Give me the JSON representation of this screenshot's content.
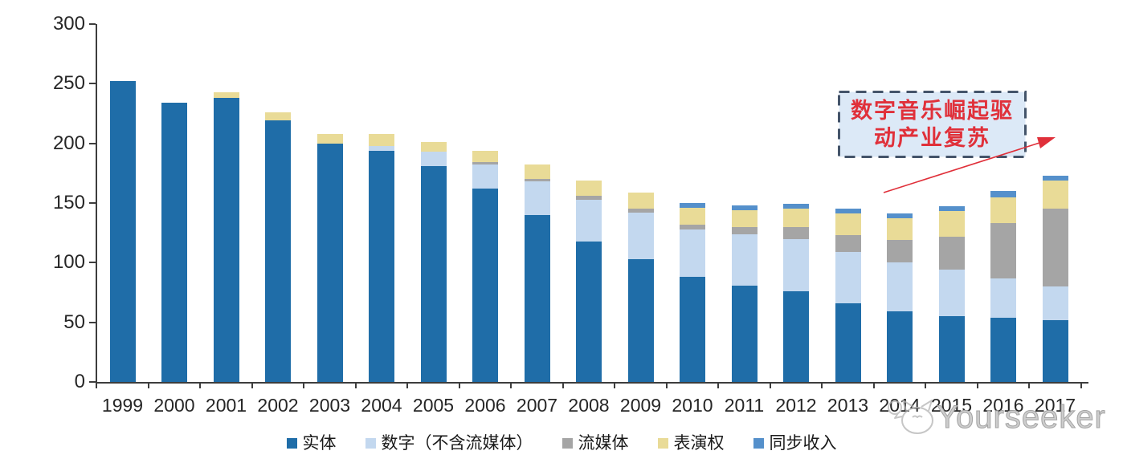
{
  "chart_data": {
    "type": "bar",
    "stacked": true,
    "title": "",
    "xlabel": "",
    "ylabel": "",
    "categories": [
      "1999",
      "2000",
      "2001",
      "2002",
      "2003",
      "2004",
      "2005",
      "2006",
      "2007",
      "2008",
      "2009",
      "2010",
      "2011",
      "2012",
      "2013",
      "2014",
      "2015",
      "2016",
      "2017"
    ],
    "series": [
      {
        "name": "实体",
        "color": "#1F6DA8",
        "values": [
          252,
          234,
          238,
          219,
          200,
          194,
          181,
          162,
          140,
          118,
          103,
          88,
          81,
          76,
          66,
          59,
          55,
          54,
          52
        ]
      },
      {
        "name": "数字（不含流媒体）",
        "color": "#C3D8EF",
        "values": [
          0,
          0,
          0,
          0,
          0,
          4,
          12,
          20,
          28,
          35,
          39,
          40,
          43,
          44,
          43,
          41,
          39,
          33,
          28
        ]
      },
      {
        "name": "流媒体",
        "color": "#A5A5A5",
        "values": [
          0,
          0,
          0,
          0,
          0,
          0,
          0,
          2,
          2,
          3,
          3,
          4,
          6,
          10,
          14,
          19,
          28,
          46,
          65
        ]
      },
      {
        "name": "表演权",
        "color": "#E9DB97",
        "values": [
          0,
          0,
          5,
          7,
          8,
          10,
          8,
          10,
          12,
          13,
          14,
          14,
          14,
          15,
          18,
          18,
          21,
          22,
          24
        ]
      },
      {
        "name": "同步收入",
        "color": "#5590CB",
        "values": [
          0,
          0,
          0,
          0,
          0,
          0,
          0,
          0,
          0,
          0,
          0,
          4,
          4,
          4,
          4,
          4,
          4,
          5,
          4
        ]
      }
    ],
    "ylim": [
      0,
      300
    ],
    "yticks": [
      0,
      50,
      100,
      150,
      200,
      250,
      300
    ],
    "grid": false,
    "legend_position": "bottom"
  },
  "annotation": {
    "line1": "数字音乐崛起驱",
    "line2": "动产业复苏",
    "text_color": "#E0303A",
    "border_color": "#44546A",
    "fill_color": "#DCE9F7",
    "arrow_color": "#E0303A"
  },
  "watermark": {
    "text": "Yourseeker",
    "logo": "cat-logo-icon"
  }
}
